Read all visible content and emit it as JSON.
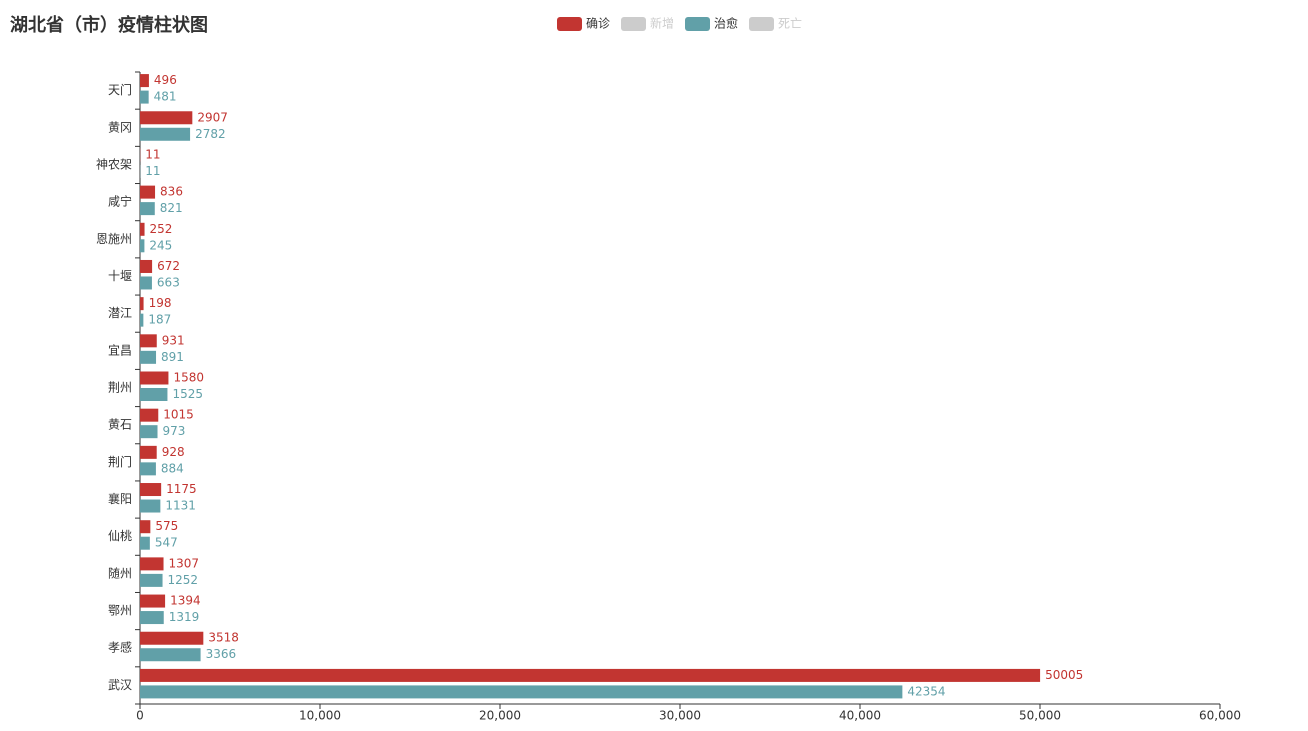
{
  "chart_data": {
    "type": "bar",
    "orientation": "horizontal",
    "title": "湖北省（市）疫情柱状图",
    "categories": [
      "天门",
      "黄冈",
      "神农架",
      "咸宁",
      "恩施州",
      "十堰",
      "潜江",
      "宜昌",
      "荆州",
      "黄石",
      "荆门",
      "襄阳",
      "仙桃",
      "随州",
      "鄂州",
      "孝感",
      "武汉"
    ],
    "series": [
      {
        "name": "确诊",
        "color": "#c23531",
        "selected": true,
        "values": [
          496,
          2907,
          11,
          836,
          252,
          672,
          198,
          931,
          1580,
          1015,
          928,
          1175,
          575,
          1307,
          1394,
          3518,
          50005
        ]
      },
      {
        "name": "新增",
        "color": "#ccc",
        "selected": false
      },
      {
        "name": "治愈",
        "color": "#61a0a8",
        "selected": true,
        "values": [
          481,
          2782,
          11,
          821,
          245,
          663,
          187,
          891,
          1525,
          973,
          884,
          1131,
          547,
          1252,
          1319,
          3366,
          42354
        ]
      },
      {
        "name": "死亡",
        "color": "#ccc",
        "selected": false
      }
    ],
    "xlim": [
      0,
      60000
    ],
    "xticks": [
      0,
      {
        "value": 10000,
        "label": "10,000"
      },
      {
        "value": 20000,
        "label": "20,000"
      },
      {
        "value": 30000,
        "label": "30,000"
      },
      {
        "value": 40000,
        "label": "40,000"
      },
      {
        "value": 50000,
        "label": "50,000"
      },
      {
        "value": 60000,
        "label": "60,000"
      }
    ],
    "legend": "top",
    "grid": false
  }
}
